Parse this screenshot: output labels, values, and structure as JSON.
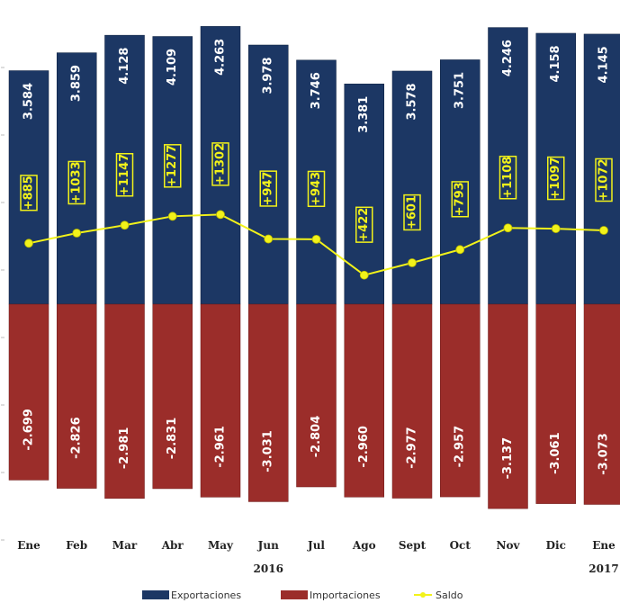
{
  "chart_data": {
    "type": "bar",
    "categories": [
      "Ene",
      "Feb",
      "Mar",
      "Abr",
      "May",
      "Jun",
      "Jul",
      "Ago",
      "Sept",
      "Oct",
      "Nov",
      "Dic",
      "Ene"
    ],
    "year_labels": [
      {
        "category_index": 5,
        "text": "2016"
      },
      {
        "category_index": 12,
        "text": "2017"
      }
    ],
    "series": [
      {
        "name": "Exportaciones",
        "kind": "bar",
        "color": "#1c3764",
        "values": [
          3584,
          3859,
          4128,
          4109,
          4263,
          3978,
          3746,
          3381,
          3578,
          3751,
          4246,
          4158,
          4145
        ],
        "labels": [
          "3.584",
          "3.859",
          "4.128",
          "4.109",
          "4.263",
          "3.978",
          "3.746",
          "3.381",
          "3.578",
          "3.751",
          "4.246",
          "4.158",
          "4.145"
        ]
      },
      {
        "name": "Importaciones",
        "kind": "bar",
        "color": "#9b2d2a",
        "values": [
          -2699,
          -2826,
          -2981,
          -2831,
          -2961,
          -3031,
          -2804,
          -2960,
          -2977,
          -2957,
          -3137,
          -3061,
          -3073
        ],
        "labels": [
          "-2.699",
          "-2.826",
          "-2.981",
          "-2.831",
          "-2.961",
          "-3.031",
          "-2.804",
          "-2.960",
          "-2.977",
          "-2.957",
          "-3.137",
          "-3.061",
          "-3.073"
        ]
      },
      {
        "name": "Saldo",
        "kind": "line",
        "color": "#f2f21a",
        "values": [
          885,
          1033,
          1147,
          1277,
          1302,
          947,
          943,
          422,
          601,
          793,
          1108,
          1097,
          1072
        ],
        "labels": [
          "+885",
          "+1033",
          "+1147",
          "+1277",
          "+1302",
          "+947",
          "+943",
          "+422",
          "+601",
          "+793",
          "+1108",
          "+1097",
          "+1072"
        ]
      }
    ],
    "ylim": [
      -3250,
      4400
    ],
    "grid": false,
    "legend_position": "bottom"
  }
}
